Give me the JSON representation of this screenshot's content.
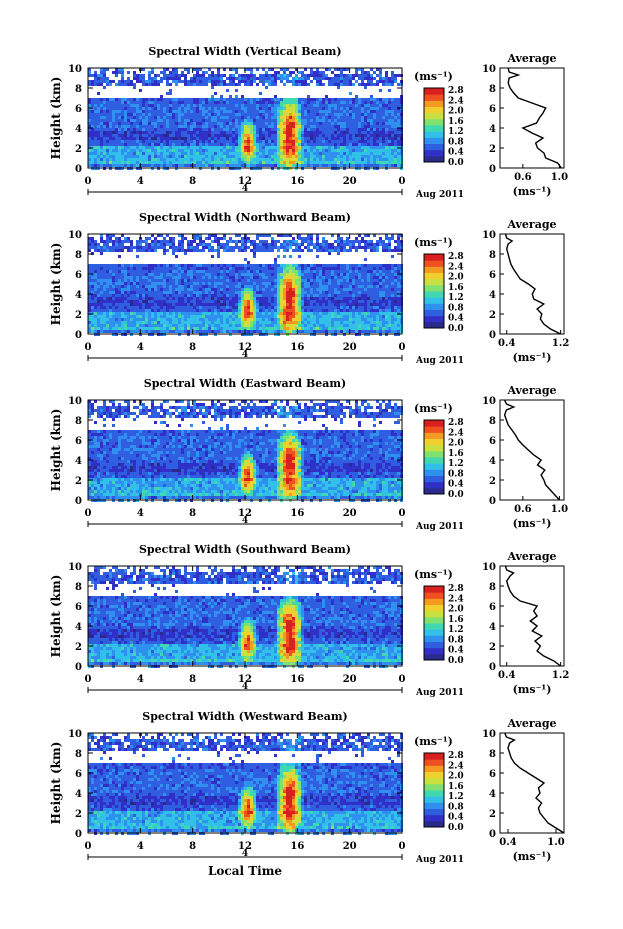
{
  "chart_data": [
    {
      "type": "heatmap",
      "title": "Spectral Width (Vertical Beam)",
      "ylabel": "Height (km)",
      "yticks": [
        "0",
        "2",
        "4",
        "6",
        "8",
        "10"
      ],
      "ylim": [
        0,
        10
      ],
      "xticks": [
        "0",
        "4",
        "8",
        "12",
        "16",
        "20",
        "0"
      ],
      "xlim": [
        0,
        24
      ],
      "date_marker": "4",
      "date_label": "Aug 2011",
      "colorbar": {
        "unit": "(ms⁻¹)",
        "ticks": [
          "0.0",
          "0.4",
          "0.8",
          "1.2",
          "1.6",
          "2.0",
          "2.4",
          "2.8"
        ]
      },
      "profile": {
        "title": "Average",
        "xticks": [
          "0.6",
          "1.0"
        ],
        "xlim": [
          0.35,
          1.05
        ],
        "xlabel": "(ms⁻¹)",
        "points": [
          [
            1.02,
            0
          ],
          [
            0.98,
            0.5
          ],
          [
            0.85,
            1
          ],
          [
            0.83,
            1.5
          ],
          [
            0.76,
            2
          ],
          [
            0.74,
            2.5
          ],
          [
            0.82,
            3
          ],
          [
            0.7,
            3.5
          ],
          [
            0.6,
            4
          ],
          [
            0.75,
            4.5
          ],
          [
            0.78,
            5
          ],
          [
            0.82,
            5.5
          ],
          [
            0.85,
            6
          ],
          [
            0.7,
            6.5
          ],
          [
            0.55,
            7
          ],
          [
            0.5,
            7.5
          ],
          [
            0.46,
            8
          ],
          [
            0.44,
            8.5
          ],
          [
            0.45,
            9
          ],
          [
            0.55,
            9.3
          ],
          [
            0.45,
            9.6
          ],
          [
            0.44,
            10
          ]
        ]
      }
    },
    {
      "type": "heatmap",
      "title": "Spectral Width (Northward Beam)",
      "ylabel": "Height (km)",
      "yticks": [
        "0",
        "2",
        "4",
        "6",
        "8",
        "10"
      ],
      "ylim": [
        0,
        10
      ],
      "xticks": [
        "0",
        "4",
        "8",
        "12",
        "16",
        "20",
        "0"
      ],
      "xlim": [
        0,
        24
      ],
      "date_marker": "4",
      "date_label": "Aug 2011",
      "colorbar": {
        "unit": "(ms⁻¹)",
        "ticks": [
          "0.0",
          "0.4",
          "0.8",
          "1.2",
          "1.6",
          "2.0",
          "2.4",
          "2.8"
        ]
      },
      "profile": {
        "title": "Average",
        "xticks": [
          "0.4",
          "1.2"
        ],
        "xlim": [
          0.3,
          1.25
        ],
        "xlabel": "(ms⁻¹)",
        "points": [
          [
            1.2,
            0
          ],
          [
            1.05,
            0.5
          ],
          [
            0.95,
            1
          ],
          [
            0.9,
            1.5
          ],
          [
            0.92,
            2
          ],
          [
            0.85,
            2.5
          ],
          [
            0.95,
            3
          ],
          [
            0.8,
            3.5
          ],
          [
            0.78,
            4
          ],
          [
            0.82,
            4.5
          ],
          [
            0.72,
            5
          ],
          [
            0.6,
            5.5
          ],
          [
            0.55,
            6
          ],
          [
            0.5,
            6.5
          ],
          [
            0.46,
            7
          ],
          [
            0.44,
            7.5
          ],
          [
            0.42,
            8
          ],
          [
            0.4,
            8.5
          ],
          [
            0.42,
            9
          ],
          [
            0.48,
            9.3
          ],
          [
            0.4,
            9.6
          ],
          [
            0.38,
            10
          ]
        ]
      }
    },
    {
      "type": "heatmap",
      "title": "Spectral Width (Eastward Beam)",
      "ylabel": "Height (km)",
      "yticks": [
        "0",
        "2",
        "4",
        "6",
        "8",
        "10"
      ],
      "ylim": [
        0,
        10
      ],
      "xticks": [
        "0",
        "4",
        "8",
        "12",
        "16",
        "20",
        "0"
      ],
      "xlim": [
        0,
        24
      ],
      "date_marker": "4",
      "date_label": "Aug 2011",
      "colorbar": {
        "unit": "(ms⁻¹)",
        "ticks": [
          "0.0",
          "0.4",
          "0.8",
          "1.2",
          "1.6",
          "2.0",
          "2.4",
          "2.8"
        ]
      },
      "profile": {
        "title": "Average",
        "xticks": [
          "0.6",
          "1.0"
        ],
        "xlim": [
          0.35,
          1.05
        ],
        "xlabel": "(ms⁻¹)",
        "points": [
          [
            1.0,
            0
          ],
          [
            0.95,
            0.5
          ],
          [
            0.9,
            1
          ],
          [
            0.85,
            1.5
          ],
          [
            0.83,
            2
          ],
          [
            0.8,
            2.5
          ],
          [
            0.84,
            3
          ],
          [
            0.76,
            3.5
          ],
          [
            0.8,
            4
          ],
          [
            0.72,
            4.5
          ],
          [
            0.66,
            5
          ],
          [
            0.6,
            5.5
          ],
          [
            0.55,
            6
          ],
          [
            0.52,
            6.5
          ],
          [
            0.48,
            7
          ],
          [
            0.44,
            7.5
          ],
          [
            0.42,
            8
          ],
          [
            0.4,
            8.5
          ],
          [
            0.42,
            9
          ],
          [
            0.5,
            9.3
          ],
          [
            0.42,
            9.6
          ],
          [
            0.4,
            10
          ]
        ]
      }
    },
    {
      "type": "heatmap",
      "title": "Spectral Width (Southward Beam)",
      "ylabel": "Height (km)",
      "yticks": [
        "0",
        "2",
        "4",
        "6",
        "8",
        "10"
      ],
      "ylim": [
        0,
        10
      ],
      "xticks": [
        "0",
        "4",
        "8",
        "12",
        "16",
        "20",
        "0"
      ],
      "xlim": [
        0,
        24
      ],
      "date_marker": "4",
      "date_label": "Aug 2011",
      "colorbar": {
        "unit": "(ms⁻¹)",
        "ticks": [
          "0.0",
          "0.4",
          "0.8",
          "1.2",
          "1.6",
          "2.0",
          "2.4",
          "2.8"
        ]
      },
      "profile": {
        "title": "Average",
        "xticks": [
          "0.4",
          "1.2"
        ],
        "xlim": [
          0.3,
          1.25
        ],
        "xlabel": "(ms⁻¹)",
        "points": [
          [
            1.2,
            0
          ],
          [
            1.1,
            0.5
          ],
          [
            0.95,
            1
          ],
          [
            0.85,
            1.5
          ],
          [
            0.9,
            2
          ],
          [
            0.82,
            2.5
          ],
          [
            0.92,
            3
          ],
          [
            0.78,
            3.5
          ],
          [
            0.85,
            4
          ],
          [
            0.75,
            4.5
          ],
          [
            0.85,
            5
          ],
          [
            0.8,
            5.5
          ],
          [
            0.85,
            6
          ],
          [
            0.6,
            6.5
          ],
          [
            0.5,
            7
          ],
          [
            0.45,
            7.5
          ],
          [
            0.42,
            8
          ],
          [
            0.4,
            8.5
          ],
          [
            0.45,
            9
          ],
          [
            0.5,
            9.3
          ],
          [
            0.4,
            9.6
          ],
          [
            0.38,
            10
          ]
        ]
      }
    },
    {
      "type": "heatmap",
      "title": "Spectral Width (Westward Beam)",
      "ylabel": "Height (km)",
      "yticks": [
        "0",
        "2",
        "4",
        "6",
        "8",
        "10"
      ],
      "ylim": [
        0,
        10
      ],
      "xticks": [
        "0",
        "4",
        "8",
        "12",
        "16",
        "20",
        "0"
      ],
      "xlim": [
        0,
        24
      ],
      "date_marker": "4",
      "date_label": "Aug 2011",
      "xlabel": "Local Time",
      "colorbar": {
        "unit": "(ms⁻¹)",
        "ticks": [
          "0.0",
          "0.4",
          "0.8",
          "1.2",
          "1.6",
          "2.0",
          "2.4",
          "2.8"
        ]
      },
      "profile": {
        "title": "Average",
        "xticks": [
          "0.4",
          "1.0"
        ],
        "xlim": [
          0.3,
          1.1
        ],
        "xlabel": "(ms⁻¹)",
        "points": [
          [
            1.1,
            0
          ],
          [
            1.0,
            0.5
          ],
          [
            0.9,
            1
          ],
          [
            0.85,
            1.5
          ],
          [
            0.8,
            2
          ],
          [
            0.78,
            2.5
          ],
          [
            0.82,
            3
          ],
          [
            0.75,
            3.5
          ],
          [
            0.8,
            4
          ],
          [
            0.78,
            4.5
          ],
          [
            0.85,
            5
          ],
          [
            0.75,
            5.5
          ],
          [
            0.65,
            6
          ],
          [
            0.55,
            6.5
          ],
          [
            0.48,
            7
          ],
          [
            0.44,
            7.5
          ],
          [
            0.42,
            8
          ],
          [
            0.4,
            8.5
          ],
          [
            0.42,
            9
          ],
          [
            0.48,
            9.3
          ],
          [
            0.38,
            9.6
          ],
          [
            0.36,
            10
          ]
        ]
      }
    }
  ],
  "colors": {
    "colormap": [
      "#2a2a8c",
      "#3030c8",
      "#2f5fe0",
      "#2f90f0",
      "#30c0e8",
      "#40d8b0",
      "#80e070",
      "#c8e040",
      "#f0d030",
      "#f59a20",
      "#ee5020",
      "#d82020"
    ],
    "missing": "#ffffff"
  }
}
